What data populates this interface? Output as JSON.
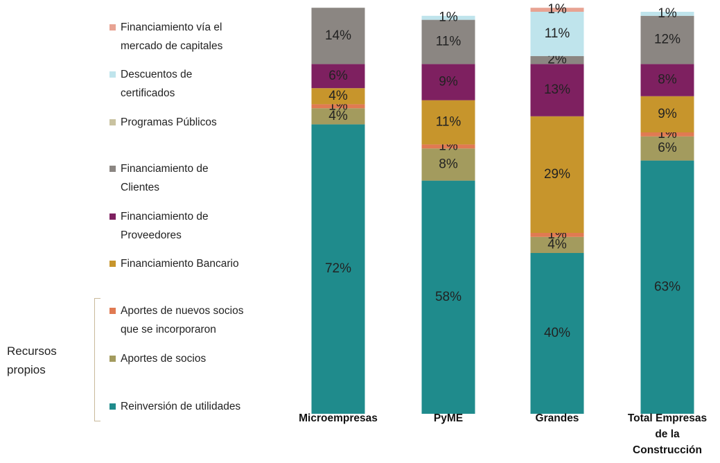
{
  "chart_data": {
    "type": "stacked_bar",
    "categories": [
      "Microempresas",
      "PyME",
      "Grandes",
      "Total Empresas de la Construcción"
    ],
    "group_label": "Recursos propios",
    "series": [
      {
        "name": "Reinversión de utilidades",
        "color": "#1f8b8c",
        "values": [
          72,
          58,
          40,
          63
        ],
        "value_labels": [
          "72%",
          "58%",
          "40%",
          "63%"
        ]
      },
      {
        "name": "Aportes de socios",
        "color": "#a39b5e",
        "values": [
          4,
          8,
          4,
          6
        ],
        "value_labels": [
          "4%",
          "8%",
          "4%",
          "6%"
        ]
      },
      {
        "name": "Aportes de nuevos socios que se incorporaron",
        "color": "#e07a52",
        "values": [
          1,
          1,
          1,
          1
        ],
        "value_labels": [
          "1%",
          "1%",
          "1%",
          "1%"
        ]
      },
      {
        "name": "Financiamiento Bancario",
        "color": "#c7952c",
        "values": [
          4,
          11,
          29,
          9
        ],
        "value_labels": [
          "4%",
          "11%",
          "29%",
          "9%"
        ]
      },
      {
        "name": "Financiamiento de Proveedores",
        "color": "#7e2060",
        "values": [
          6,
          9,
          13,
          8
        ],
        "value_labels": [
          "6%",
          "9%",
          "13%",
          "8%"
        ]
      },
      {
        "name": "Financiamiento de Clientes",
        "color": "#8b8682",
        "values": [
          14,
          11,
          2,
          12
        ],
        "value_labels": [
          "14%",
          "11%",
          "2%",
          "12%"
        ]
      },
      {
        "name": "Programas Públicos",
        "color": "#c9c2a0",
        "values": [
          0,
          0,
          0,
          0
        ],
        "value_labels": [
          null,
          null,
          null,
          null
        ]
      },
      {
        "name": "Descuentos de certificados",
        "color": "#bfe4ec",
        "values": [
          0,
          1,
          11,
          1
        ],
        "value_labels": [
          null,
          "1%",
          "11%",
          "1%"
        ]
      },
      {
        "name": "Financiamiento vía el mercado de capitales",
        "color": "#e8a393",
        "values": [
          0,
          0,
          1,
          0
        ],
        "value_labels": [
          null,
          null,
          "1%",
          null
        ]
      }
    ]
  }
}
